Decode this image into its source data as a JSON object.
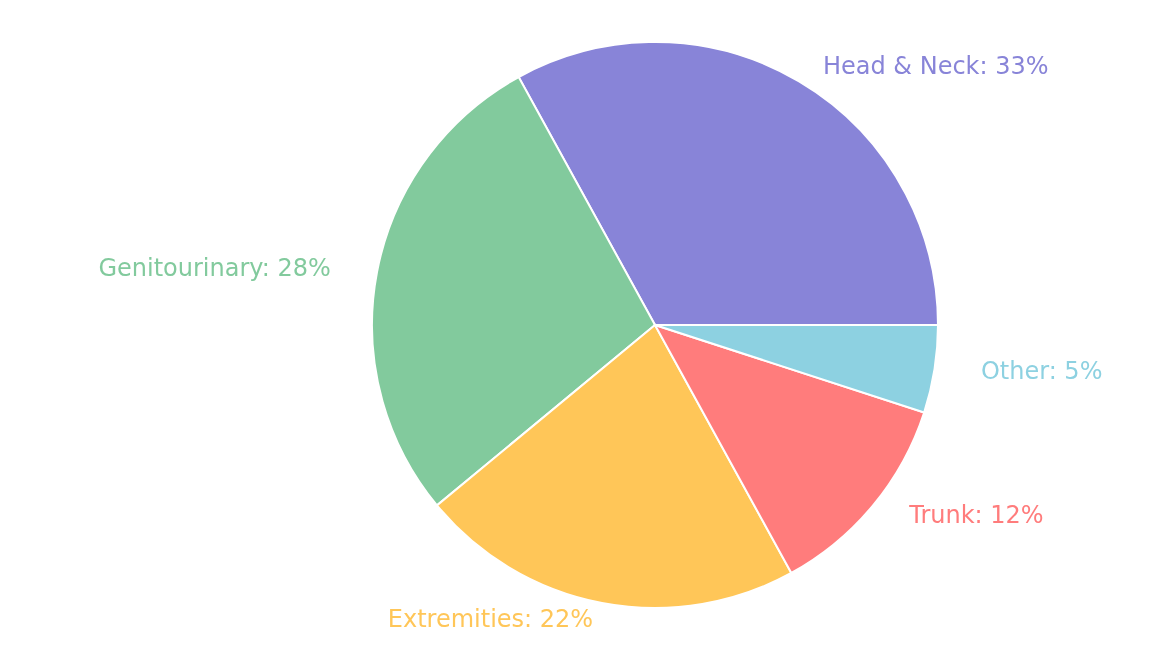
{
  "chart_data": {
    "type": "pie",
    "categories": [
      "Head & Neck",
      "Genitourinary",
      "Extremities",
      "Trunk",
      "Other"
    ],
    "values": [
      33,
      28,
      22,
      12,
      5
    ],
    "value_labels": [
      "33%",
      "28%",
      "22%",
      "12%",
      "5%"
    ],
    "colors": [
      "#8884d8",
      "#82ca9d",
      "#ffc658",
      "#ff7c7c",
      "#8dd1e1"
    ]
  }
}
